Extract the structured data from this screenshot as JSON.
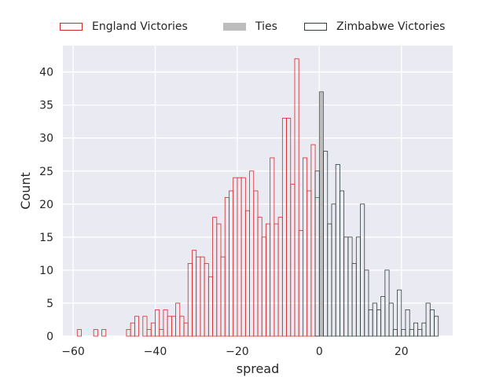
{
  "chart_data": {
    "type": "bar",
    "title": "",
    "xlabel": "spread",
    "ylabel": "Count",
    "xlim": [
      -62.5,
      32.5
    ],
    "ylim": [
      0,
      44
    ],
    "xticks": [
      -60,
      -40,
      -20,
      0,
      20
    ],
    "xtick_labels": [
      "−60",
      "−40",
      "−20",
      "0",
      "20"
    ],
    "yticks": [
      0,
      5,
      10,
      15,
      20,
      25,
      30,
      35,
      40
    ],
    "ytick_labels": [
      "0",
      "5",
      "10",
      "15",
      "20",
      "25",
      "30",
      "35",
      "40"
    ],
    "grid": true,
    "legend_position": "top",
    "bin_width": 1,
    "series": [
      {
        "name": "England Victories",
        "color": "#d62728",
        "style": "step-outline",
        "x": [
          -59,
          -58,
          -57,
          -56,
          -55,
          -54,
          -53,
          -52,
          -51,
          -50,
          -49,
          -48,
          -47,
          -46,
          -45,
          -44,
          -43,
          -42,
          -41,
          -40,
          -39,
          -38,
          -37,
          -36,
          -35,
          -34,
          -33,
          -32,
          -31,
          -30,
          -29,
          -28,
          -27,
          -26,
          -25,
          -24,
          -23,
          -22,
          -21,
          -20,
          -19,
          -18,
          -17,
          -16,
          -15,
          -14,
          -13,
          -12,
          -11,
          -10,
          -9,
          -8,
          -7,
          -6,
          -5,
          -4,
          -3,
          -2,
          -1
        ],
        "values": [
          1,
          0,
          0,
          0,
          1,
          0,
          1,
          0,
          0,
          0,
          0,
          0,
          1,
          2,
          3,
          0,
          3,
          1,
          2,
          4,
          1,
          4,
          3,
          3,
          5,
          3,
          2,
          11,
          13,
          12,
          12,
          11,
          9,
          18,
          17,
          12,
          21,
          22,
          24,
          24,
          24,
          19,
          25,
          22,
          18,
          15,
          17,
          27,
          17,
          18,
          33,
          33,
          23,
          42,
          16,
          27,
          22,
          29,
          21
        ]
      },
      {
        "name": "Ties",
        "color": "#bdbdbd",
        "style": "filled",
        "x": [
          0
        ],
        "values": [
          37
        ]
      },
      {
        "name": "Zimbabwe Victories",
        "color": "#2f3e3a",
        "style": "step-outline",
        "x": [
          -1,
          1,
          2,
          3,
          4,
          5,
          6,
          7,
          8,
          9,
          10,
          11,
          12,
          13,
          14,
          15,
          16,
          17,
          18,
          19,
          20,
          21,
          22,
          23,
          24,
          25,
          26,
          27,
          28
        ],
        "values": [
          25,
          28,
          17,
          20,
          26,
          22,
          15,
          15,
          11,
          15,
          20,
          10,
          4,
          5,
          4,
          6,
          10,
          5,
          1,
          7,
          1,
          4,
          1,
          2,
          1,
          2,
          5,
          4,
          3
        ]
      }
    ]
  }
}
